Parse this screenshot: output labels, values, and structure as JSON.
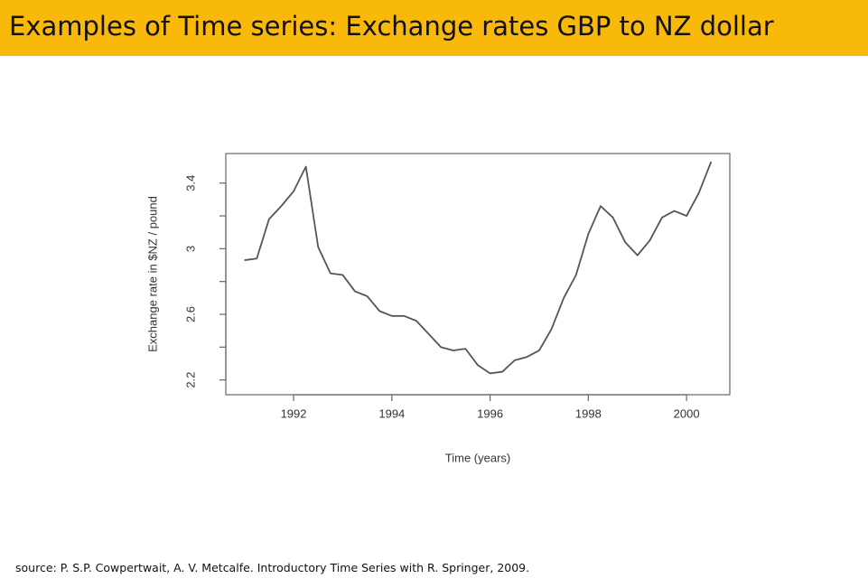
{
  "title": "Examples of Time series: Exchange rates GBP to NZ dollar",
  "source": "source: P. S.P. Cowpertwait, A. V. Metcalfe. Introductory Time Series with R. Springer, 2009.",
  "chart_data": {
    "type": "line",
    "xlabel": "Time (years)",
    "ylabel": "Exchange rate in $NZ / pound",
    "x": [
      1991,
      1991.25,
      1991.5,
      1991.75,
      1992,
      1992.25,
      1992.5,
      1992.75,
      1993,
      1993.25,
      1993.5,
      1993.75,
      1994,
      1994.25,
      1994.5,
      1994.75,
      1995,
      1995.25,
      1995.5,
      1995.75,
      1996,
      1996.25,
      1996.5,
      1996.75,
      1997,
      1997.25,
      1997.5,
      1997.75,
      1998,
      1998.25,
      1998.5,
      1998.75,
      1999,
      1999.25,
      1999.5,
      1999.75,
      2000,
      2000.25,
      2000.5
    ],
    "series": [
      {
        "color": "#555555",
        "values": [
          2.93,
          2.94,
          3.18,
          3.26,
          3.35,
          3.5,
          3.01,
          2.85,
          2.84,
          2.74,
          2.71,
          2.62,
          2.59,
          2.59,
          2.56,
          2.48,
          2.4,
          2.38,
          2.39,
          2.29,
          2.24,
          2.25,
          2.32,
          2.34,
          2.38,
          2.51,
          2.7,
          2.84,
          3.09,
          3.26,
          3.19,
          3.04,
          2.96,
          3.05,
          3.19,
          3.23,
          3.2,
          3.34,
          3.53
        ]
      }
    ],
    "xlim": [
      1990.62,
      2000.88
    ],
    "xticks": [
      1992,
      1994,
      1996,
      1998,
      2000
    ],
    "ylim": [
      2.11,
      3.58
    ],
    "yticks": [
      2.2,
      2.6,
      3.0,
      3.4
    ],
    "yminorticks": [
      2.4,
      2.8,
      3.2
    ]
  }
}
